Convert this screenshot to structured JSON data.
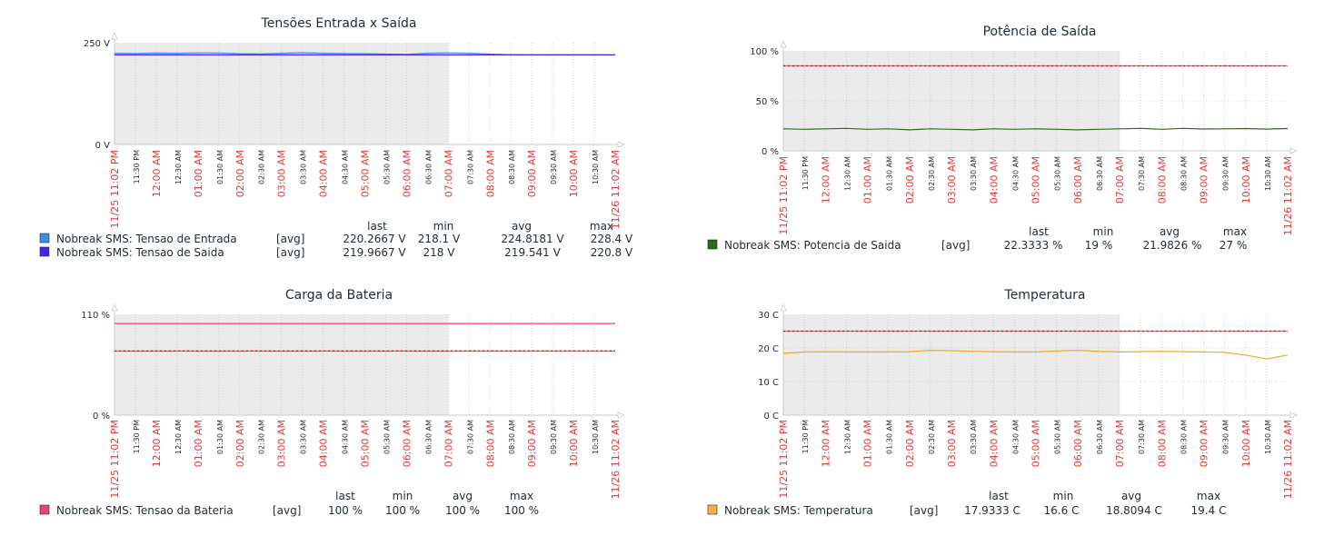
{
  "chart_data": [
    {
      "type": "line",
      "title": "Tensões Entrada x Saída",
      "yticks": [
        "250 V",
        "0 V"
      ],
      "ylim": [
        0,
        250
      ],
      "grid": true,
      "x_labels": [
        "11/25 11:02 PM",
        "11:30 PM",
        "12:00 AM",
        "12:30 AM",
        "01:00 AM",
        "01:30 AM",
        "02:00 AM",
        "02:30 AM",
        "03:00 AM",
        "03:30 AM",
        "04:00 AM",
        "04:30 AM",
        "05:00 AM",
        "05:30 AM",
        "06:00 AM",
        "06:30 AM",
        "07:00 AM",
        "07:30 AM",
        "08:00 AM",
        "08:30 AM",
        "09:00 AM",
        "09:30 AM",
        "10:00 AM",
        "10:30 AM",
        "11/26 11:02 AM"
      ],
      "shaded_until": "07:00 AM",
      "series": [
        {
          "name": "Nobreak SMS: Tensao de Entrada",
          "color": "#3a8eea",
          "values": [
            224,
            223.5,
            224.5,
            224,
            225,
            224.8,
            223,
            222.5,
            224,
            225.5,
            224.2,
            223.5,
            223,
            222,
            221.5,
            224,
            225,
            224,
            222,
            220.5,
            220.2,
            220.3,
            220.3,
            220.3,
            220.3
          ]
        },
        {
          "name": "Nobreak SMS: Tensao de Saida",
          "color": "#4a21e8",
          "values": [
            220,
            220,
            220,
            220,
            220,
            220,
            220,
            220,
            220,
            220,
            220,
            220,
            220,
            220,
            220,
            220,
            220,
            220,
            220,
            220,
            220,
            220,
            220,
            220,
            220
          ]
        }
      ],
      "legend": {
        "headers": [
          "last",
          "min",
          "avg",
          "max"
        ],
        "rows": [
          {
            "color": "#3a8eea",
            "name": "Nobreak SMS: Tensao de Entrada",
            "func": "[avg]",
            "last": "220.2667 V",
            "min": "218.1 V",
            "avg": "224.8181 V",
            "max": "228.4 V"
          },
          {
            "color": "#4a21e8",
            "name": "Nobreak SMS: Tensao de Saida",
            "func": "[avg]",
            "last": "219.9667 V",
            "min": "218 V",
            "avg": "219.541 V",
            "max": "220.8 V"
          }
        ]
      }
    },
    {
      "type": "line",
      "title": "Potência de Saída",
      "yticks": [
        "100 %",
        "50 %",
        "0 %"
      ],
      "ylim": [
        0,
        100
      ],
      "grid": true,
      "x_labels": [
        "11/25 11:02 PM",
        "11:30 PM",
        "12:00 AM",
        "12:30 AM",
        "01:00 AM",
        "01:30 AM",
        "02:00 AM",
        "02:30 AM",
        "03:00 AM",
        "03:30 AM",
        "04:00 AM",
        "04:30 AM",
        "05:00 AM",
        "05:30 AM",
        "06:00 AM",
        "06:30 AM",
        "07:00 AM",
        "07:30 AM",
        "08:00 AM",
        "08:30 AM",
        "09:00 AM",
        "09:30 AM",
        "10:00 AM",
        "10:30 AM",
        "11/26 11:02 AM"
      ],
      "shaded_until": "07:00 AM",
      "trigger_value": 85,
      "series": [
        {
          "name": "Nobreak SMS: Potencia de Saida",
          "color": "#2e6b16",
          "values": [
            22,
            21.5,
            22,
            22.5,
            21.5,
            22,
            21,
            22,
            21.5,
            21,
            22,
            21.5,
            22,
            21.5,
            21,
            21.5,
            22,
            22.5,
            21.5,
            22.5,
            21.8,
            22,
            22.3,
            21.7,
            22.3
          ]
        }
      ],
      "legend": {
        "headers": [
          "last",
          "min",
          "avg",
          "max"
        ],
        "rows": [
          {
            "color": "#2e6b16",
            "name": "Nobreak SMS: Potencia de Saida",
            "func": "[avg]",
            "last": "22.3333 %",
            "min": "19 %",
            "avg": "21.9826 %",
            "max": "27 %"
          }
        ]
      }
    },
    {
      "type": "line",
      "title": "Carga da Bateria",
      "yticks": [
        "110 %",
        "0 %"
      ],
      "ylim": [
        0,
        110
      ],
      "grid": true,
      "x_labels": [
        "11/25 11:02 PM",
        "11:30 PM",
        "12:00 AM",
        "12:30 AM",
        "01:00 AM",
        "01:30 AM",
        "02:00 AM",
        "02:30 AM",
        "03:00 AM",
        "03:30 AM",
        "04:00 AM",
        "04:30 AM",
        "05:00 AM",
        "05:30 AM",
        "06:00 AM",
        "06:30 AM",
        "07:00 AM",
        "07:30 AM",
        "08:00 AM",
        "08:30 AM",
        "09:00 AM",
        "09:30 AM",
        "10:00 AM",
        "10:30 AM",
        "11/26 11:02 AM"
      ],
      "shaded_until": "07:00 AM",
      "trigger_value": 70,
      "series": [
        {
          "name": "Nobreak SMS: Tensao da Bateria",
          "color": "#e5457a",
          "values": [
            100,
            100,
            100,
            100,
            100,
            100,
            100,
            100,
            100,
            100,
            100,
            100,
            100,
            100,
            100,
            100,
            100,
            100,
            100,
            100,
            100,
            100,
            100,
            100,
            100
          ]
        }
      ],
      "legend": {
        "headers": [
          "last",
          "min",
          "avg",
          "max"
        ],
        "rows": [
          {
            "color": "#e5457a",
            "name": "Nobreak SMS: Tensao da Bateria",
            "func": "[avg]",
            "last": "100 %",
            "min": "100 %",
            "avg": "100 %",
            "max": "100 %"
          }
        ]
      }
    },
    {
      "type": "line",
      "title": "Temperatura",
      "yticks": [
        "30 C",
        "20 C",
        "10 C",
        "0 C"
      ],
      "ylim": [
        0,
        30
      ],
      "grid": true,
      "x_labels": [
        "11/25 11:02 PM",
        "11:30 PM",
        "12:00 AM",
        "12:30 AM",
        "01:00 AM",
        "01:30 AM",
        "02:00 AM",
        "02:30 AM",
        "03:00 AM",
        "03:30 AM",
        "04:00 AM",
        "04:30 AM",
        "05:00 AM",
        "05:30 AM",
        "06:00 AM",
        "06:30 AM",
        "07:00 AM",
        "07:30 AM",
        "08:00 AM",
        "08:30 AM",
        "09:00 AM",
        "09:30 AM",
        "10:00 AM",
        "10:30 AM",
        "11/26 11:02 AM"
      ],
      "shaded_until": "07:00 AM",
      "trigger_value": 25,
      "series": [
        {
          "name": "Nobreak SMS: Temperatura",
          "color": "#f5a623",
          "values": [
            18.4,
            18.8,
            18.9,
            18.8,
            18.8,
            18.8,
            18.9,
            19.3,
            19.2,
            19.0,
            18.9,
            18.8,
            18.8,
            19.1,
            19.3,
            19.0,
            18.8,
            18.9,
            19.0,
            18.9,
            18.8,
            18.7,
            17.9,
            16.7,
            17.9
          ]
        }
      ],
      "legend": {
        "headers": [
          "last",
          "min",
          "avg",
          "max"
        ],
        "rows": [
          {
            "color": "#fbb03b",
            "name": "Nobreak SMS: Temperatura",
            "func": "[avg]",
            "last": "17.9333 C",
            "min": "16.6 C",
            "avg": "18.8094 C",
            "max": "19.4 C"
          }
        ]
      }
    }
  ]
}
